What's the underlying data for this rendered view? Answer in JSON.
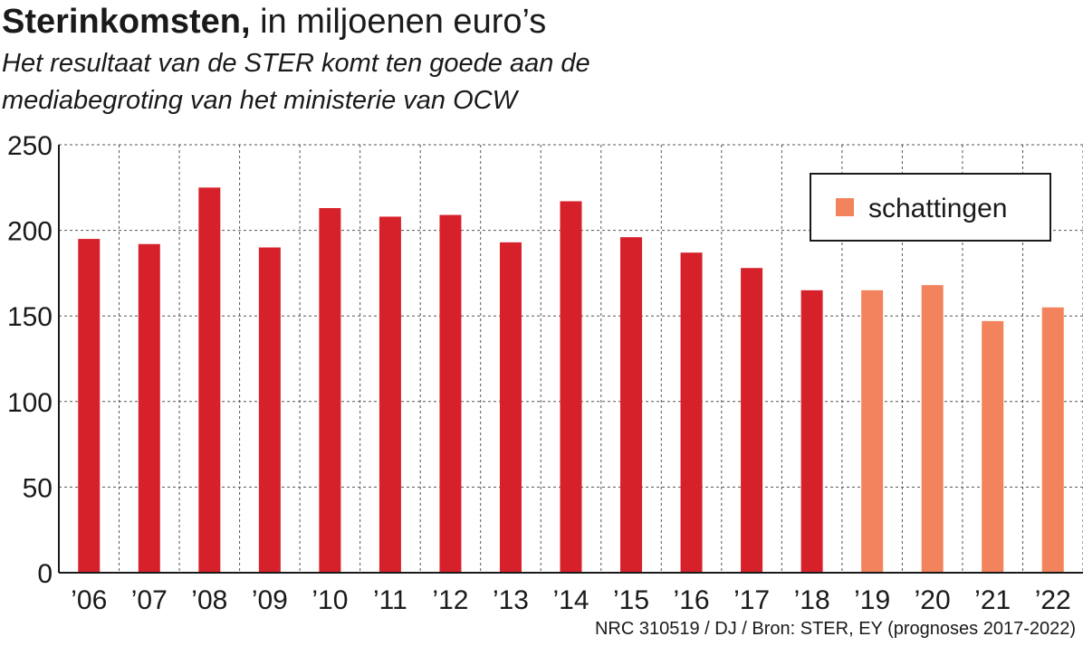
{
  "title": {
    "bold": "Sterinkomsten,",
    "rest": " in miljoenen euro’s"
  },
  "subtitle": [
    "Het resultaat van de STER komt ten goede aan de",
    "mediabegroting van het ministerie van OCW"
  ],
  "source": "NRC 310519 / DJ / Bron: STER, EY (prognoses 2017-2022)",
  "colors": {
    "actual": "#d7212a",
    "estimate": "#f2835c",
    "axis": "#1a1a1a",
    "grid": "#555555"
  },
  "chart_data": {
    "type": "bar",
    "categories": [
      "’06",
      "’07",
      "’08",
      "’09",
      "’10",
      "’11",
      "’12",
      "’13",
      "’14",
      "’15",
      "’16",
      "’17",
      "’18",
      "’19",
      "’20",
      "’21",
      "’22"
    ],
    "values": [
      195,
      192,
      225,
      190,
      213,
      208,
      209,
      193,
      217,
      196,
      187,
      178,
      165,
      165,
      168,
      147,
      155
    ],
    "estimate": [
      false,
      false,
      false,
      false,
      false,
      false,
      false,
      false,
      false,
      false,
      false,
      false,
      false,
      true,
      true,
      true,
      true
    ],
    "ylim": [
      0,
      250
    ],
    "yticks": [
      0,
      50,
      100,
      150,
      200,
      250
    ],
    "grid": true,
    "legend": {
      "label": "schattingen",
      "position": "top-right"
    }
  }
}
